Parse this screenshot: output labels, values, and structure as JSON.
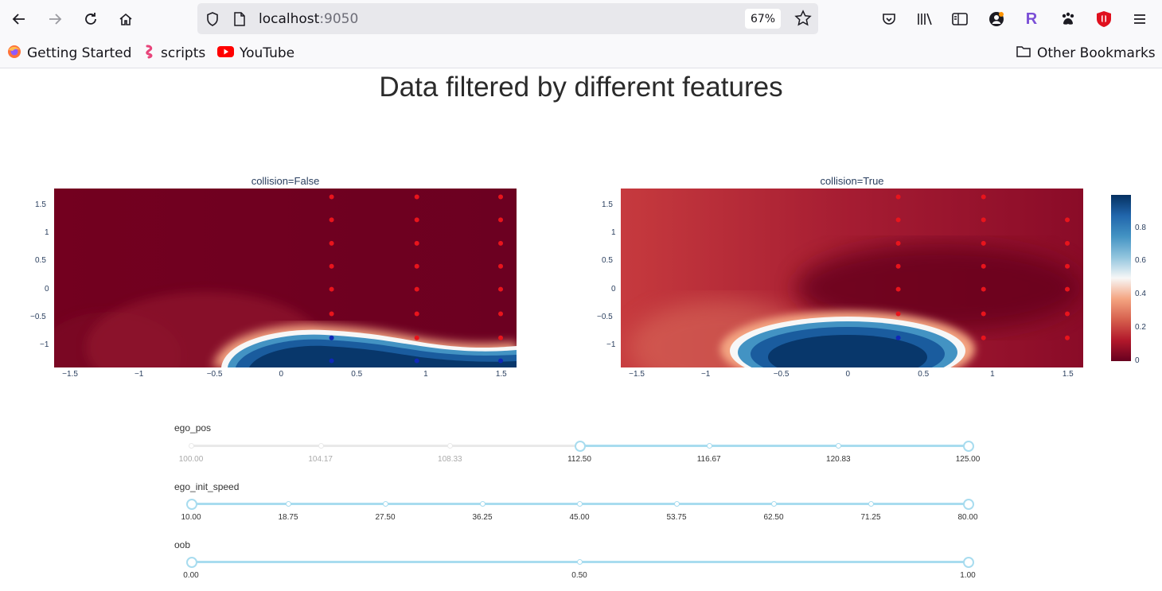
{
  "browser": {
    "url_host": "localhost",
    "url_port": ":9050",
    "zoom": "67%"
  },
  "bookmarks": [
    {
      "label": "Getting Started"
    },
    {
      "label": "scripts"
    },
    {
      "label": "YouTube"
    }
  ],
  "other_bookmarks": "Other Bookmarks",
  "page": {
    "title": "Data filtered by different features"
  },
  "chart_data": [
    {
      "type": "heatmap",
      "title": "collision=False",
      "x_ticks": [
        "−1.5",
        "−1",
        "−0.5",
        "0",
        "0.5",
        "1",
        "1.5"
      ],
      "y_ticks": [
        "1.5",
        "1",
        "0.5",
        "0",
        "−0.5",
        "−1"
      ],
      "xlim": [
        -1.6,
        1.6
      ],
      "ylim": [
        -1.4,
        1.8
      ],
      "points": {
        "red": [
          [
            0.32,
            1.65
          ],
          [
            0.32,
            1.24
          ],
          [
            0.32,
            0.82
          ],
          [
            0.32,
            0.41
          ],
          [
            0.32,
            0.0
          ],
          [
            0.32,
            -0.44
          ],
          [
            0.91,
            1.65
          ],
          [
            0.91,
            1.24
          ],
          [
            0.91,
            0.82
          ],
          [
            0.91,
            0.41
          ],
          [
            0.91,
            0.0
          ],
          [
            0.91,
            -0.44
          ],
          [
            0.91,
            -0.87
          ],
          [
            1.49,
            1.65
          ],
          [
            1.49,
            1.24
          ],
          [
            1.49,
            0.82
          ],
          [
            1.49,
            0.41
          ],
          [
            1.49,
            0.0
          ],
          [
            1.49,
            -0.44
          ],
          [
            1.49,
            -0.87
          ]
        ],
        "blue": [
          [
            0.32,
            -0.87
          ],
          [
            0.32,
            -1.28
          ],
          [
            0.91,
            -1.28
          ],
          [
            1.49,
            -1.28
          ]
        ]
      }
    },
    {
      "type": "heatmap",
      "title": "collision=True",
      "x_ticks": [
        "−1.5",
        "−1",
        "−0.5",
        "0",
        "0.5",
        "1",
        "1.5"
      ],
      "y_ticks": [
        "1.5",
        "1",
        "0.5",
        "0",
        "−0.5",
        "−1"
      ],
      "xlim": [
        -1.6,
        1.6
      ],
      "ylim": [
        -1.4,
        1.8
      ],
      "points": {
        "red": [
          [
            0.32,
            1.65
          ],
          [
            0.32,
            1.24
          ],
          [
            0.32,
            0.82
          ],
          [
            0.32,
            0.41
          ],
          [
            0.32,
            0.0
          ],
          [
            0.32,
            -0.44
          ],
          [
            0.91,
            1.65
          ],
          [
            0.91,
            1.24
          ],
          [
            0.91,
            0.82
          ],
          [
            0.91,
            0.41
          ],
          [
            0.91,
            0.0
          ],
          [
            0.91,
            -0.44
          ],
          [
            0.91,
            -0.87
          ],
          [
            1.49,
            1.24
          ],
          [
            1.49,
            0.82
          ],
          [
            1.49,
            0.41
          ],
          [
            1.49,
            0.0
          ],
          [
            1.49,
            -0.44
          ],
          [
            1.49,
            -0.87
          ]
        ],
        "blue": [
          [
            0.32,
            -0.87
          ]
        ]
      }
    }
  ],
  "colorbar": {
    "ticks": [
      "0.8",
      "0.6",
      "0.4",
      "0.2",
      "0"
    ],
    "colors": [
      "#053061",
      "#2166ac",
      "#4393c3",
      "#92c5de",
      "#f7f7f7",
      "#f4a582",
      "#d6604d",
      "#b2182b",
      "#67001f"
    ]
  },
  "sliders": [
    {
      "label": "ego_pos",
      "marks": [
        "100.00",
        "104.17",
        "108.33",
        "112.50",
        "116.67",
        "120.83",
        "125.00"
      ],
      "range": [
        112.5,
        125.0
      ],
      "min": 100.0,
      "max": 125.0
    },
    {
      "label": "ego_init_speed",
      "marks": [
        "10.00",
        "18.75",
        "27.50",
        "36.25",
        "45.00",
        "53.75",
        "62.50",
        "71.25",
        "80.00"
      ],
      "range": [
        10.0,
        80.0
      ],
      "min": 10.0,
      "max": 80.0
    },
    {
      "label": "oob",
      "marks": [
        "0.00",
        "0.50",
        "1.00"
      ],
      "range": [
        0.0,
        1.0
      ],
      "min": 0.0,
      "max": 1.0
    }
  ]
}
